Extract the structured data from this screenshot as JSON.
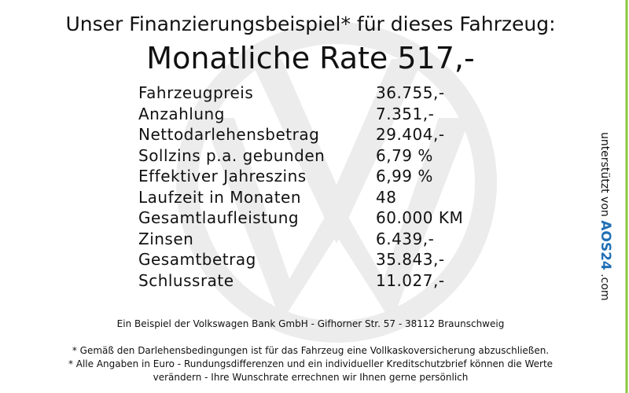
{
  "header": {
    "title": "Unser Finanzierungsbeispiel* für dieses Fahrzeug:",
    "rate": "Monatliche Rate 517,-"
  },
  "table": {
    "rows": [
      [
        "Fahrzeugpreis",
        "36.755,-"
      ],
      [
        "Anzahlung",
        "7.351,-"
      ],
      [
        "Nettodarlehensbetrag",
        "29.404,-"
      ],
      [
        "Sollzins p.a. gebunden",
        "6,79 %"
      ],
      [
        "Effektiver Jahreszins",
        "6,99 %"
      ],
      [
        "Laufzeit in Monaten",
        "48"
      ],
      [
        "Gesamtlaufleistung",
        "60.000 KM"
      ],
      [
        "Zinsen",
        "6.439,-"
      ],
      [
        "Gesamtbetrag",
        "35.843,-"
      ],
      [
        "Schlussrate",
        "11.027,-"
      ]
    ]
  },
  "footer": {
    "bank": "Ein Beispiel der Volkswagen Bank GmbH - Gifhorner Str. 57 - 38112 Braunschweig",
    "notes": [
      "* Gemäß den Darlehensbedingungen ist für das Fahrzeug eine Vollkaskoversicherung abzuschließen.",
      "* Alle Angaben in Euro - Rundungsdifferenzen und ein individueller Kreditschutzbrief können die Werte",
      "verändern - Ihre Wunschrate errechnen wir Ihnen gerne persönlich"
    ]
  },
  "side": {
    "prefix": "unterstützt von",
    "brand": "AOS24",
    "suffix": ".com"
  }
}
